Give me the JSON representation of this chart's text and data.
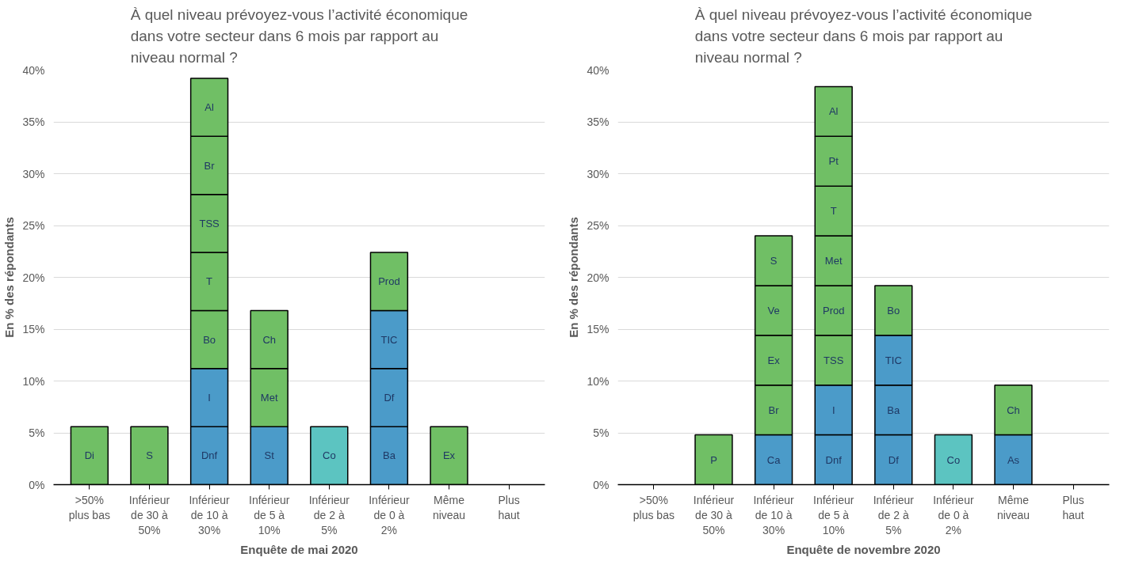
{
  "chart_data": [
    {
      "type": "bar",
      "stacked": true,
      "title": "À quel niveau prévoyez-vous l’activité économique dans votre secteur dans 6 mois par rapport au niveau normal ?",
      "xlabel": "Enquête de mai 2020",
      "ylabel": "En % des répondants",
      "categories": [
        ">50% plus bas",
        "Inférieur de 30 à 50%",
        "Inférieur de 10 à 30%",
        "Inférieur de 5 à 10%",
        "Inférieur de 2 à 5%",
        "Inférieur de 0 à 2%",
        "Même niveau",
        "Plus haut"
      ],
      "ylim": [
        0,
        40
      ],
      "yticks": [
        {
          "value": 0,
          "label": "0%"
        },
        {
          "value": 5,
          "label": "5%"
        },
        {
          "value": 10,
          "label": "10%"
        },
        {
          "value": 15,
          "label": "15%"
        },
        {
          "value": 20,
          "label": "20%"
        },
        {
          "value": 25,
          "label": "25%"
        },
        {
          "value": 30,
          "label": "30%"
        },
        {
          "value": 35,
          "label": "35%"
        },
        {
          "value": 40,
          "label": "40%"
        }
      ],
      "grid": "y",
      "series": [
        {
          "values": [
            5.6,
            5.6,
            5.6,
            5.6,
            5.6,
            5.6,
            5.6,
            null
          ],
          "colors": [
            "#70bf65",
            "#70bf65",
            "#4b9bc9",
            "#4b9bc9",
            "#5cc4c1",
            "#4b9bc9",
            "#70bf65",
            null
          ],
          "value_labels": [
            "Di",
            "S",
            "Dnf",
            "St",
            "Co",
            "Ba",
            "Ex",
            null
          ]
        },
        {
          "values": [
            null,
            null,
            5.6,
            5.6,
            null,
            5.6,
            null,
            null
          ],
          "colors": [
            null,
            null,
            "#4b9bc9",
            "#70bf65",
            null,
            "#4b9bc9",
            null,
            null
          ],
          "value_labels": [
            null,
            null,
            "I",
            "Met",
            null,
            "Df",
            null,
            null
          ]
        },
        {
          "values": [
            null,
            null,
            5.6,
            5.6,
            null,
            5.6,
            null,
            null
          ],
          "colors": [
            null,
            null,
            "#70bf65",
            "#70bf65",
            null,
            "#4b9bc9",
            null,
            null
          ],
          "value_labels": [
            null,
            null,
            "Bo",
            "Ch",
            null,
            "TIC",
            null,
            null
          ]
        },
        {
          "values": [
            null,
            null,
            5.6,
            null,
            null,
            5.6,
            null,
            null
          ],
          "colors": [
            null,
            null,
            "#70bf65",
            null,
            null,
            "#70bf65",
            null,
            null
          ],
          "value_labels": [
            null,
            null,
            "T",
            null,
            null,
            "Prod",
            null,
            null
          ]
        },
        {
          "values": [
            null,
            null,
            5.6,
            null,
            null,
            null,
            null,
            null
          ],
          "colors": [
            null,
            null,
            "#70bf65",
            null,
            null,
            null,
            null,
            null
          ],
          "value_labels": [
            null,
            null,
            "TSS",
            null,
            null,
            null,
            null,
            null
          ]
        },
        {
          "values": [
            null,
            null,
            5.6,
            null,
            null,
            null,
            null,
            null
          ],
          "colors": [
            null,
            null,
            "#70bf65",
            null,
            null,
            null,
            null,
            null
          ],
          "value_labels": [
            null,
            null,
            "Br",
            null,
            null,
            null,
            null,
            null
          ]
        },
        {
          "values": [
            null,
            null,
            5.6,
            null,
            null,
            null,
            null,
            null
          ],
          "colors": [
            null,
            null,
            "#70bf65",
            null,
            null,
            null,
            null,
            null
          ],
          "value_labels": [
            null,
            null,
            "Al",
            null,
            null,
            null,
            null,
            null
          ]
        }
      ]
    },
    {
      "type": "bar",
      "stacked": true,
      "title": "À quel niveau prévoyez-vous l’activité économique dans votre secteur dans 6 mois par rapport au niveau normal ?",
      "xlabel": "Enquête de novembre 2020",
      "ylabel": "En % des répondants",
      "categories": [
        ">50% plus bas",
        "Inférieur de 30 à 50%",
        "Inférieur de 10 à 30%",
        "Inférieur de 5 à 10%",
        "Inférieur de 2 à 5%",
        "Inférieur de 0 à 2%",
        "Même niveau",
        "Plus haut"
      ],
      "ylim": [
        0,
        40
      ],
      "yticks": [
        {
          "value": 0,
          "label": "0%"
        },
        {
          "value": 5,
          "label": "5%"
        },
        {
          "value": 10,
          "label": "10%"
        },
        {
          "value": 15,
          "label": "15%"
        },
        {
          "value": 20,
          "label": "20%"
        },
        {
          "value": 25,
          "label": "25%"
        },
        {
          "value": 30,
          "label": "30%"
        },
        {
          "value": 35,
          "label": "35%"
        },
        {
          "value": 40,
          "label": "40%"
        }
      ],
      "grid": "y",
      "series": [
        {
          "values": [
            null,
            4.8,
            4.8,
            4.8,
            4.8,
            4.8,
            4.8,
            null
          ],
          "colors": [
            null,
            "#70bf65",
            "#4b9bc9",
            "#4b9bc9",
            "#4b9bc9",
            "#5cc4c1",
            "#4b9bc9",
            null
          ],
          "value_labels": [
            null,
            "P",
            "Ca",
            "Dnf",
            "Df",
            "Co",
            "As",
            null
          ]
        },
        {
          "values": [
            null,
            null,
            4.8,
            4.8,
            4.8,
            null,
            4.8,
            null
          ],
          "colors": [
            null,
            null,
            "#70bf65",
            "#4b9bc9",
            "#4b9bc9",
            null,
            "#70bf65",
            null
          ],
          "value_labels": [
            null,
            null,
            "Br",
            "I",
            "Ba",
            null,
            "Ch",
            null
          ]
        },
        {
          "values": [
            null,
            null,
            4.8,
            4.8,
            4.8,
            null,
            null,
            null
          ],
          "colors": [
            null,
            null,
            "#70bf65",
            "#70bf65",
            "#4b9bc9",
            null,
            null,
            null
          ],
          "value_labels": [
            null,
            null,
            "Ex",
            "TSS",
            "TIC",
            null,
            null,
            null
          ]
        },
        {
          "values": [
            null,
            null,
            4.8,
            4.8,
            4.8,
            null,
            null,
            null
          ],
          "colors": [
            null,
            null,
            "#70bf65",
            "#70bf65",
            "#70bf65",
            null,
            null,
            null
          ],
          "value_labels": [
            null,
            null,
            "Ve",
            "Prod",
            "Bo",
            null,
            null,
            null
          ]
        },
        {
          "values": [
            null,
            null,
            4.8,
            4.8,
            null,
            null,
            null,
            null
          ],
          "colors": [
            null,
            null,
            "#70bf65",
            "#70bf65",
            null,
            null,
            null,
            null
          ],
          "value_labels": [
            null,
            null,
            "S",
            "Met",
            null,
            null,
            null,
            null
          ]
        },
        {
          "values": [
            null,
            null,
            null,
            4.8,
            null,
            null,
            null,
            null
          ],
          "colors": [
            null,
            null,
            null,
            "#70bf65",
            null,
            null,
            null,
            null
          ],
          "value_labels": [
            null,
            null,
            null,
            "T",
            null,
            null,
            null,
            null
          ]
        },
        {
          "values": [
            null,
            null,
            null,
            4.8,
            null,
            null,
            null,
            null
          ],
          "colors": [
            null,
            null,
            null,
            "#70bf65",
            null,
            null,
            null,
            null
          ],
          "value_labels": [
            null,
            null,
            null,
            "Pt",
            null,
            null,
            null,
            null
          ]
        },
        {
          "values": [
            null,
            null,
            null,
            4.8,
            null,
            null,
            null,
            null
          ],
          "colors": [
            null,
            null,
            null,
            "#70bf65",
            null,
            null,
            null,
            null
          ],
          "value_labels": [
            null,
            null,
            null,
            "Al",
            null,
            null,
            null,
            null
          ]
        }
      ]
    }
  ]
}
